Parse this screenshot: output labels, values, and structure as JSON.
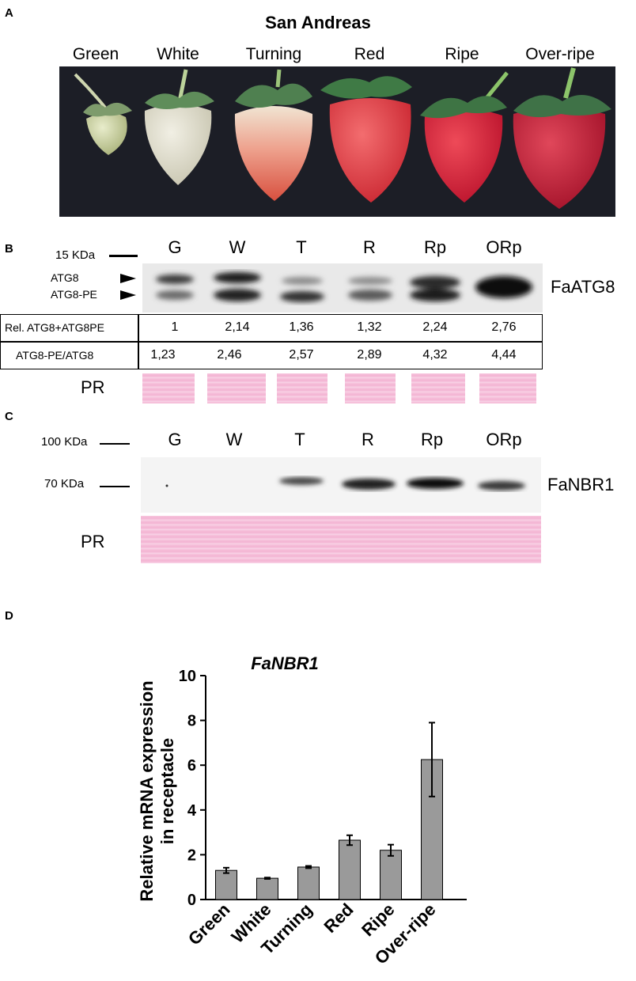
{
  "panel_a": {
    "letter": "A",
    "title": "San Andreas",
    "stages": [
      "Green",
      "White",
      "Turning",
      "Red",
      "Ripe",
      "Over-ripe"
    ]
  },
  "panel_b": {
    "letter": "B",
    "marker": "15 KDa",
    "lanes": [
      "G",
      "W",
      "T",
      "R",
      "Rp",
      "ORp"
    ],
    "band_labels": [
      "ATG8",
      "ATG8-PE"
    ],
    "protein": "FaATG8",
    "rows": [
      {
        "label": "Rel. ATG8+ATG8PE",
        "values": [
          "1",
          "2,14",
          "1,36",
          "1,32",
          "2,24",
          "2,76"
        ]
      },
      {
        "label": "ATG8-PE/ATG8",
        "values": [
          "1,23",
          "2,46",
          "2,57",
          "2,89",
          "4,32",
          "4,44"
        ]
      }
    ],
    "pr_label": "PR"
  },
  "panel_c": {
    "letter": "C",
    "markers": [
      "100 KDa",
      "70 KDa"
    ],
    "lanes": [
      "G",
      "W",
      "T",
      "R",
      "Rp",
      "ORp"
    ],
    "protein": "FaNBR1",
    "pr_label": "PR"
  },
  "panel_d": {
    "letter": "D"
  },
  "chart_data": {
    "type": "bar",
    "title": "FaNBR1",
    "ylabel": "Relative mRNA expression in receptacle",
    "ylabel_lines": [
      "Relative mRNA expression",
      "in receptacle"
    ],
    "xlabel": "",
    "categories": [
      "Green",
      "White",
      "Turning",
      "Red",
      "Ripe",
      "Over-ripe"
    ],
    "values": [
      1.3,
      0.95,
      1.45,
      2.65,
      2.2,
      6.25
    ],
    "errors": [
      0.12,
      0.03,
      0.05,
      0.22,
      0.25,
      1.65
    ],
    "ylim": [
      0,
      10
    ],
    "yticks": [
      "0",
      "2",
      "4",
      "6",
      "8",
      "10"
    ],
    "bar_color": "#9a9a9a",
    "grid": false
  }
}
